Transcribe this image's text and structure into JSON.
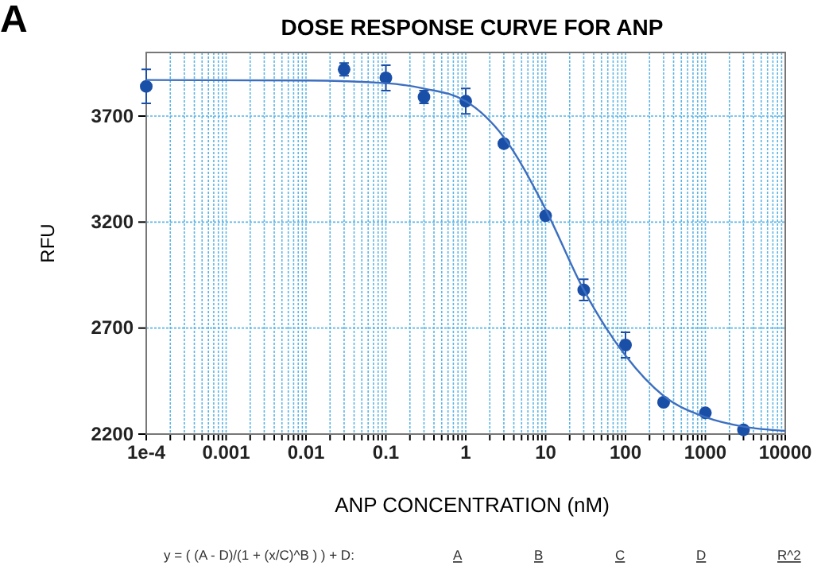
{
  "chart_data": {
    "type": "scatter",
    "title": "DOSE RESPONSE CURVE FOR ANP",
    "xlabel": "ANP CONCENTRATION (nM)",
    "ylabel": "RFU",
    "annotations": [
      "A",
      "y = ( (A - D)/(1 + (x/C)^B ) ) + D:",
      "A",
      "B",
      "C",
      "D",
      "R^2"
    ],
    "log": "x",
    "grid": true,
    "xlim": [
      0.0001,
      10000
    ],
    "ylim": [
      2200,
      4000
    ],
    "xticks": [
      {
        "value": 0.0001,
        "label": "1e-4"
      },
      {
        "value": 0.0002,
        "label": null
      },
      {
        "value": 0.0003,
        "label": null
      },
      {
        "value": 0.0004,
        "label": null
      },
      {
        "value": 0.0005,
        "label": null
      },
      {
        "value": 0.0006,
        "label": null
      },
      {
        "value": 0.0007,
        "label": null
      },
      {
        "value": 0.0008,
        "label": null
      },
      {
        "value": 0.0009,
        "label": null
      },
      0.001,
      {
        "value": 0.002,
        "label": null
      },
      {
        "value": 0.003,
        "label": null
      },
      {
        "value": 0.004,
        "label": null
      },
      {
        "value": 0.005,
        "label": null
      },
      {
        "value": 0.006,
        "label": null
      },
      {
        "value": 0.007,
        "label": null
      },
      {
        "value": 0.008,
        "label": null
      },
      {
        "value": 0.009,
        "label": null
      },
      0.01,
      {
        "value": 0.02,
        "label": null
      },
      {
        "value": 0.03,
        "label": null
      },
      {
        "value": 0.04,
        "label": null
      },
      {
        "value": 0.05,
        "label": null
      },
      {
        "value": 0.06,
        "label": null
      },
      {
        "value": 0.07,
        "label": null
      },
      {
        "value": 0.08,
        "label": null
      },
      {
        "value": 0.09,
        "label": null
      },
      0.1,
      {
        "value": 0.2,
        "label": null
      },
      {
        "value": 0.3,
        "label": null
      },
      {
        "value": 0.4,
        "label": null
      },
      {
        "value": 0.5,
        "label": null
      },
      {
        "value": 0.6,
        "label": null
      },
      {
        "value": 0.7,
        "label": null
      },
      {
        "value": 0.8,
        "label": null
      },
      {
        "value": 0.9,
        "label": null
      },
      1,
      {
        "value": 2,
        "label": null
      },
      {
        "value": 3,
        "label": null
      },
      {
        "value": 4,
        "label": null
      },
      {
        "value": 5,
        "label": null
      },
      {
        "value": 6,
        "label": null
      },
      {
        "value": 7,
        "label": null
      },
      {
        "value": 8,
        "label": null
      },
      {
        "value": 9,
        "label": null
      },
      10,
      {
        "value": 20,
        "label": null
      },
      {
        "value": 30,
        "label": null
      },
      {
        "value": 40,
        "label": null
      },
      {
        "value": 50,
        "label": null
      },
      {
        "value": 60,
        "label": null
      },
      {
        "value": 70,
        "label": null
      },
      {
        "value": 80,
        "label": null
      },
      {
        "value": 90,
        "label": null
      },
      100,
      {
        "value": 200,
        "label": null
      },
      {
        "value": 300,
        "label": null
      },
      {
        "value": 400,
        "label": null
      },
      {
        "value": 500,
        "label": null
      },
      {
        "value": 600,
        "label": null
      },
      {
        "value": 700,
        "label": null
      },
      {
        "value": 800,
        "label": null
      },
      {
        "value": 900,
        "label": null
      },
      1000,
      {
        "value": 2000,
        "label": null
      },
      {
        "value": 3000,
        "label": null
      },
      {
        "value": 4000,
        "label": null
      },
      {
        "value": 5000,
        "label": null
      },
      {
        "value": 6000,
        "label": null
      },
      {
        "value": 7000,
        "label": null
      },
      {
        "value": 8000,
        "label": null
      },
      {
        "value": 9000,
        "label": null
      },
      10000
    ],
    "yticks": [
      2200,
      2700,
      3200,
      3700
    ],
    "series": [
      {
        "marker": "circle",
        "color": "#1a4fa8",
        "x": [
          0.0001,
          0.03,
          0.1,
          0.3,
          1,
          3,
          10,
          30,
          100,
          300,
          1000,
          3000
        ],
        "values": [
          3840,
          3920,
          3880,
          3790,
          3770,
          3570,
          3230,
          2880,
          2620,
          2350,
          2300,
          2220
        ],
        "errors": [
          80,
          30,
          60,
          30,
          60,
          null,
          null,
          50,
          60,
          null,
          null,
          null
        ]
      },
      {
        "type": "line",
        "color": "#3c6fc0",
        "x": [
          0.0001,
          0.01,
          0.1,
          0.3,
          1,
          3,
          10,
          30,
          100,
          300,
          1000,
          3000,
          10000
        ],
        "values": [
          3870,
          3868,
          3855,
          3830,
          3770,
          3600,
          3260,
          2880,
          2570,
          2380,
          2280,
          2235,
          2215
        ]
      }
    ]
  }
}
